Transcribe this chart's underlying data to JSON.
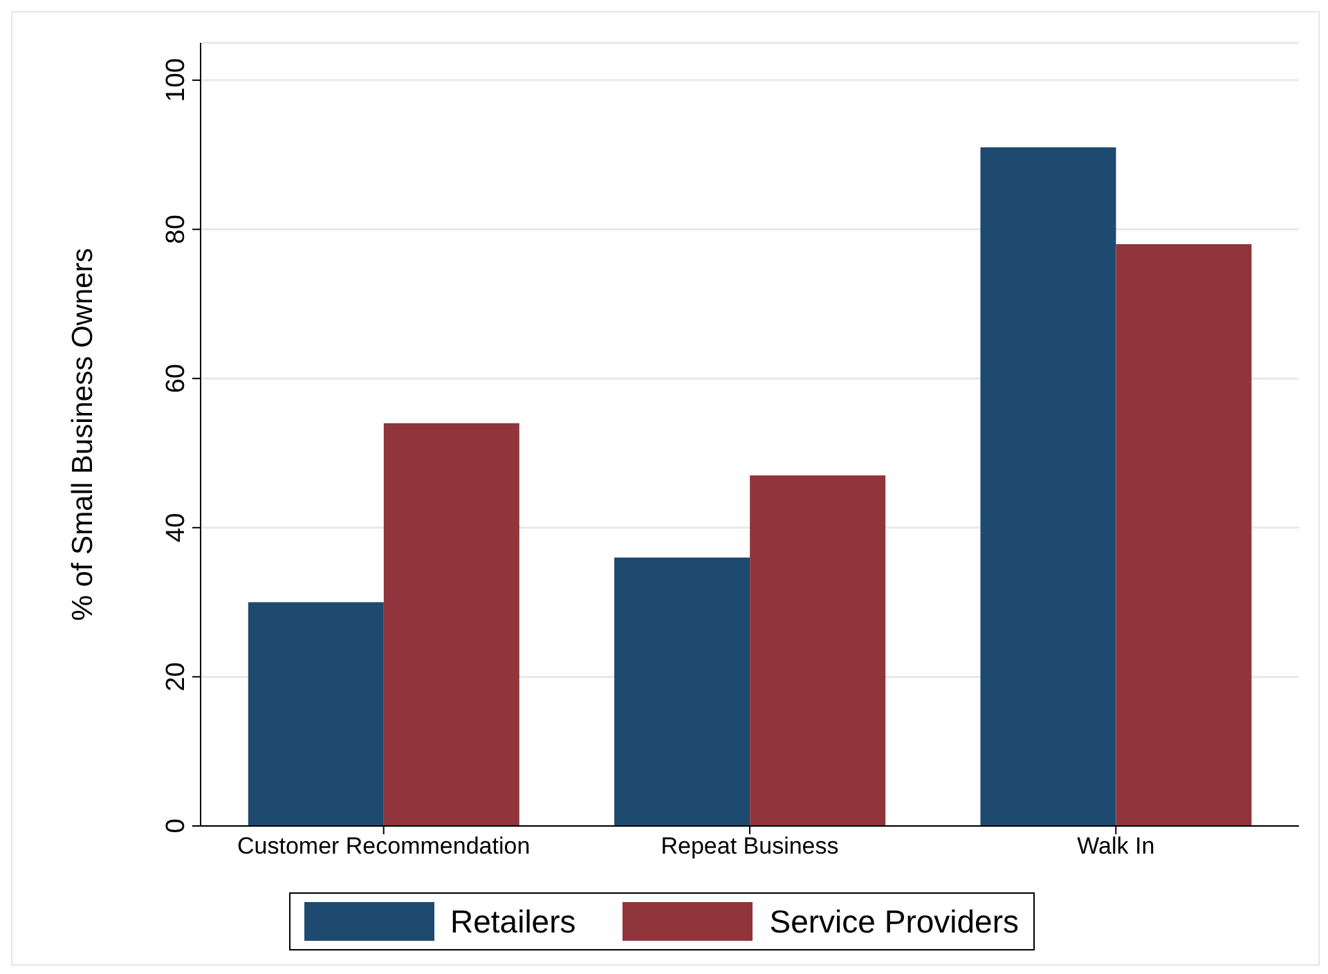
{
  "chart_data": {
    "type": "bar",
    "ylabel": "% of Small Business Owners",
    "categories": [
      "Customer Recommendation",
      "Repeat Business",
      "Walk In"
    ],
    "series": [
      {
        "name": "Retailers",
        "color": "#1f4a70",
        "values": [
          30,
          36,
          91
        ]
      },
      {
        "name": "Service Providers",
        "color": "#90353b",
        "values": [
          54,
          47,
          78
        ]
      }
    ],
    "ylim": [
      0,
      105
    ],
    "yticks": [
      0,
      20,
      40,
      60,
      80,
      100
    ],
    "grid": "y",
    "legend": "bottom"
  }
}
